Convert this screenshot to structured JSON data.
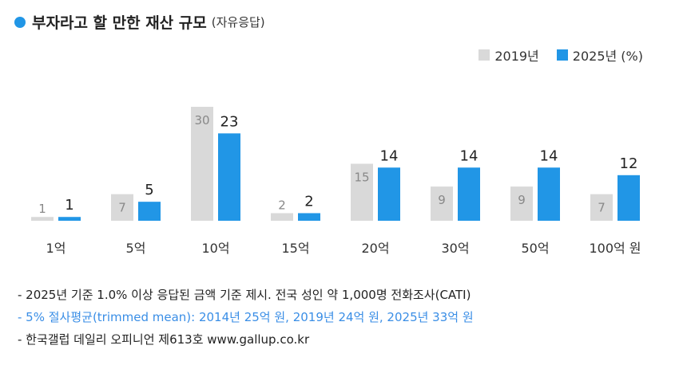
{
  "title": "부자라고 할 만한 재산 규모",
  "subtitle": "(자유응답)",
  "legend": {
    "series_2019": "2019년",
    "series_2025": "2025년 (%)"
  },
  "colors": {
    "accent": "#2196e6",
    "series_2019": "#d9d9d9",
    "series_2025": "#2196e6",
    "note_highlight": "#3a8ee6"
  },
  "chart_data": {
    "type": "bar",
    "categories": [
      "1억",
      "5억",
      "10억",
      "15억",
      "20억",
      "30억",
      "50억",
      "100억 원"
    ],
    "series": [
      {
        "name": "2019년",
        "values": [
          1,
          7,
          30,
          2,
          15,
          9,
          9,
          7
        ]
      },
      {
        "name": "2025년 (%)",
        "values": [
          1,
          5,
          23,
          2,
          14,
          14,
          14,
          12
        ]
      }
    ],
    "ylim": [
      0,
      30
    ],
    "grid": false,
    "legend_position": "top-right"
  },
  "notes": [
    "- 2025년 기준 1.0% 이상 응답된 금액 기준 제시. 전국 성인 약 1,000명 전화조사(CATI)",
    "- 5% 절사평균(trimmed mean): 2014년 25억 원, 2019년 24억 원, 2025년 33억 원",
    "- 한국갤럽 데일리 오피니언 제613호 www.gallup.co.kr"
  ]
}
